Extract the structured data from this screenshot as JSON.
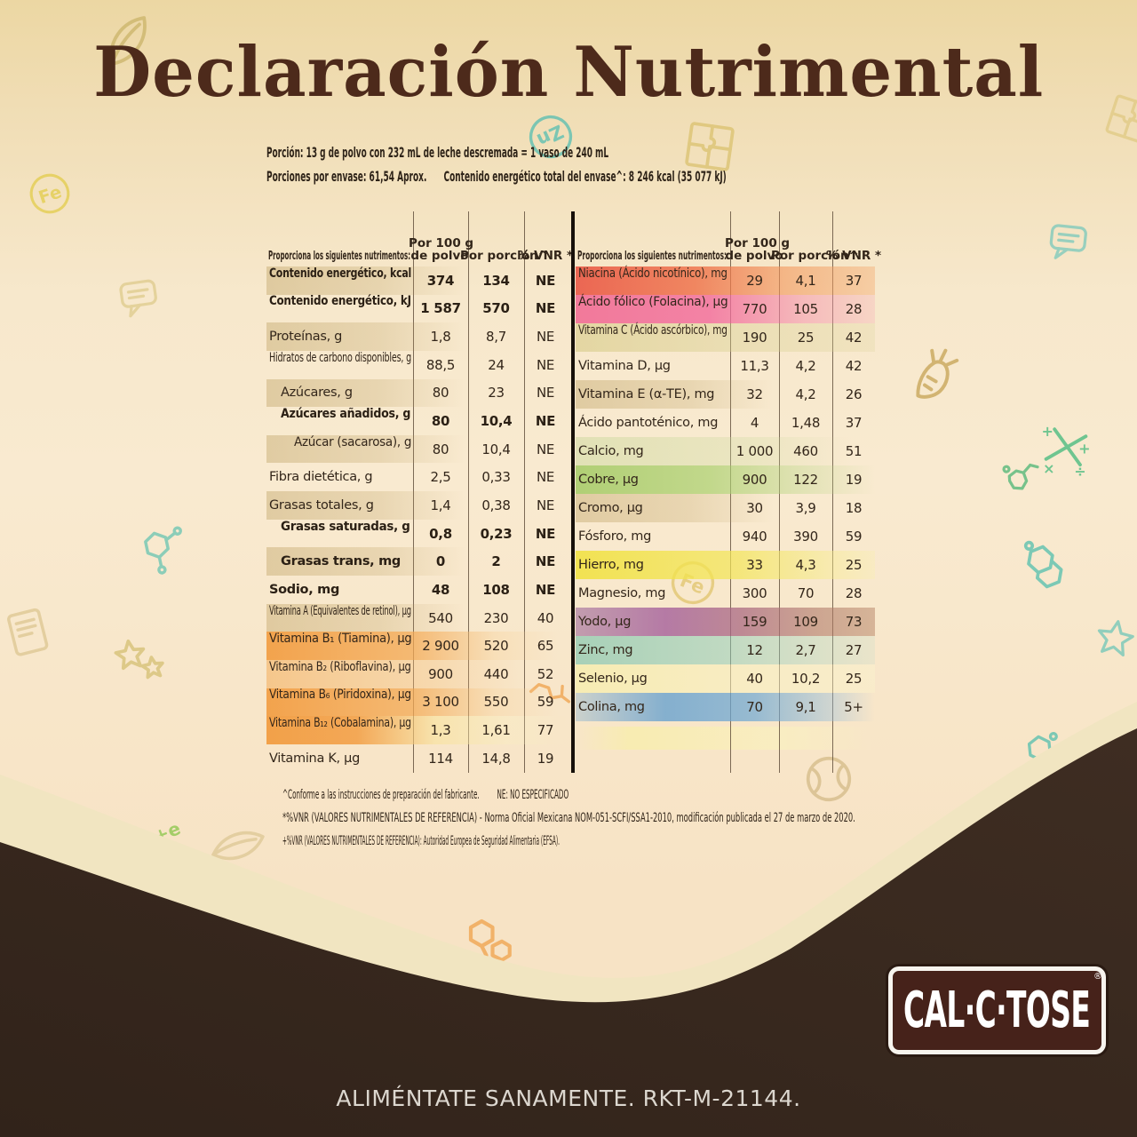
{
  "title": "Declaración Nutrimental",
  "serving": {
    "line1": "Porción: 13 g de polvo con 232 mL de leche descremada = 1 vaso de 240 mL",
    "line2a": "Porciones por envase: 61,54 Aprox.",
    "line2b": "Contenido energético total del envase^:  8 246 kcal   (35 077 kJ)"
  },
  "table_headers": {
    "nutrients": "Proporciona los siguientes nutrimentos:",
    "per100_l1": "Por 100 g",
    "per100_l2": "de polvo",
    "portion": "Por porción^",
    "vnr": "% VNR *"
  },
  "left_table": {
    "rows": [
      {
        "n": "Contenido energético, kcal",
        "v100": "374",
        "vp": "134",
        "vnr": "NE",
        "b": 1
      },
      {
        "n": "Contenido energético, kJ",
        "v100": "1 587",
        "vp": "570",
        "vnr": "NE",
        "b": 1
      },
      {
        "n": "Proteínas, g",
        "v100": "1,8",
        "vp": "8,7",
        "vnr": "NE"
      },
      {
        "n": "Hidratos de carbono disponibles, g",
        "v100": "88,5",
        "vp": "24",
        "vnr": "NE"
      },
      {
        "n": "Azúcares, g",
        "v100": "80",
        "vp": "23",
        "vnr": "NE",
        "in": 1
      },
      {
        "n": "Azúcares añadidos, g",
        "v100": "80",
        "vp": "10,4",
        "vnr": "NE",
        "b": 1,
        "in": 1
      },
      {
        "n": "Azúcar (sacarosa), g",
        "v100": "80",
        "vp": "10,4",
        "vnr": "NE",
        "in": 2
      },
      {
        "n": "Fibra dietética, g",
        "v100": "2,5",
        "vp": "0,33",
        "vnr": "NE"
      },
      {
        "n": "Grasas totales, g",
        "v100": "1,4",
        "vp": "0,38",
        "vnr": "NE"
      },
      {
        "n": "Grasas saturadas, g",
        "v100": "0,8",
        "vp": "0,23",
        "vnr": "NE",
        "b": 1,
        "in": 1
      },
      {
        "n": "Grasas trans, mg",
        "v100": "0",
        "vp": "2",
        "vnr": "NE",
        "b": 1,
        "in": 1
      },
      {
        "n": "Sodio, mg",
        "v100": "48",
        "vp": "108",
        "vnr": "NE",
        "b": 1
      },
      {
        "n": "Vitamina A (Equivalentes de retinol), µg",
        "v100": "540",
        "vp": "230",
        "vnr": "40"
      },
      {
        "n": "Vitamina B₁ (Tiamina), µg",
        "v100": "2 900",
        "vp": "520",
        "vnr": "65",
        "hl": "or-a"
      },
      {
        "n": "Vitamina B₂ (Riboflavina), µg",
        "v100": "900",
        "vp": "440",
        "vnr": "52",
        "hl": "or-b"
      },
      {
        "n": "Vitamina B₆ (Piridoxina), µg",
        "v100": "3 100",
        "vp": "550",
        "vnr": "59",
        "hl": "or-a"
      },
      {
        "n": "Vitamina B₁₂ (Cobalamina), µg",
        "v100": "1,3",
        "vp": "1,61",
        "vnr": "77",
        "hl": "or-c"
      },
      {
        "n": "Vitamina K, µg",
        "v100": "114",
        "vp": "14,8",
        "vnr": "19"
      }
    ]
  },
  "right_table": {
    "rows": [
      {
        "n": "Niacina (Ácido nicotínico), mg",
        "v100": "29",
        "vp": "4,1",
        "vnr": "37",
        "hl": "red"
      },
      {
        "n": "Ácido fólico (Folacina), µg",
        "v100": "770",
        "vp": "105",
        "vnr": "28",
        "hl": "pink"
      },
      {
        "n": "Vitamina C (Ácido ascórbico), mg",
        "v100": "190",
        "vp": "25",
        "vnr": "42",
        "hl": "khaki"
      },
      {
        "n": "Vitamina D, µg",
        "v100": "11,3",
        "vp": "4,2",
        "vnr": "42"
      },
      {
        "n": "Vitamina E (α-TE), mg",
        "v100": "32",
        "vp": "4,2",
        "vnr": "26"
      },
      {
        "n": "Ácido pantoténico, mg",
        "v100": "4",
        "vp": "1,48",
        "vnr": "37"
      },
      {
        "n": "Calcio, mg",
        "v100": "1 000",
        "vp": "460",
        "vnr": "51",
        "hl": "palegreen"
      },
      {
        "n": "Cobre, µg",
        "v100": "900",
        "vp": "122",
        "vnr": "19",
        "hl": "green"
      },
      {
        "n": "Cromo, µg",
        "v100": "30",
        "vp": "3,9",
        "vnr": "18"
      },
      {
        "n": "Fósforo, mg",
        "v100": "940",
        "vp": "390",
        "vnr": "59"
      },
      {
        "n": "Hierro, mg",
        "v100": "33",
        "vp": "4,3",
        "vnr": "25",
        "hl": "yellow"
      },
      {
        "n": "Magnesio, mg",
        "v100": "300",
        "vp": "70",
        "vnr": "28"
      },
      {
        "n": "Yodo, µg",
        "v100": "159",
        "vp": "109",
        "vnr": "73",
        "hl": "purple"
      },
      {
        "n": "Zinc, mg",
        "v100": "12",
        "vp": "2,7",
        "vnr": "27",
        "hl": "teal"
      },
      {
        "n": "Selenio, µg",
        "v100": "40",
        "vp": "10,2",
        "vnr": "25",
        "hl": "paleyellow"
      },
      {
        "n": "Colina, mg",
        "v100": "70",
        "vp": "9,1",
        "vnr": "5+",
        "hl": "blue"
      }
    ]
  },
  "footnotes": {
    "line1a": "^Conforme a las instrucciones de preparación del fabricante.",
    "line1b": "NE: NO ESPECIFICADO",
    "line2": "*%VNR (VALORES NUTRIMENTALES DE REFERENCIA) - Norma Oficial Mexicana NOM-051-SCFI/SSA1-2010, modificación publicada el 27 de marzo de 2020.",
    "line3": "+%VNR (VALORES NUTRIMENTALES DE REFERENCIA): Autoridad Europea de Seguridad Alimentaria (EFSA)."
  },
  "logo": {
    "text": "CAL·C·TOSE",
    "registered": "®"
  },
  "tagline": "ALIMÉNTATE SANAMENTE. RKT-M-21144.",
  "colors": {
    "background_top": "#ecd7a3",
    "background_mid": "#f9ead0",
    "cream_band": "#f1e5c1",
    "brand_brown": "#382a20",
    "logo_fill": "#46221a",
    "title_brown": "#4d2a1b",
    "highlight_orange": "#f29d42",
    "highlight_red": "#e9503e",
    "highlight_pink": "#f05a8c",
    "highlight_green": "#9ec85e",
    "highlight_yellow": "#f0e13c",
    "highlight_purple": "#a45f9b",
    "highlight_teal": "#82c6af",
    "highlight_blue": "#64a0d0"
  },
  "decorations": [
    "leaf-icon",
    "fe-circle-icon",
    "zn-circle-icon",
    "puzzle-icon",
    "speech-bubble-icon",
    "molecule-icon",
    "carrot-icon",
    "math-symbols-icon",
    "star-icon",
    "tennis-ball-icon",
    "hexagon-molecule-icon",
    "notebook-icon"
  ]
}
